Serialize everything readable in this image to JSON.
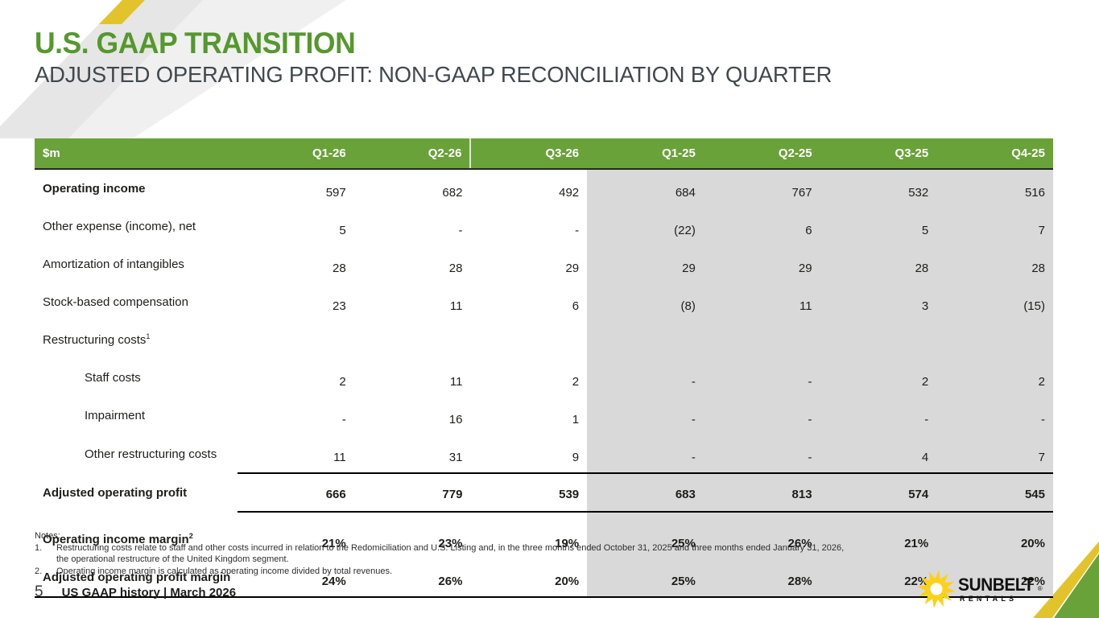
{
  "slide": {
    "title": "U.S. GAAP TRANSITION",
    "subtitle": "ADJUSTED OPERATING PROFIT: NON-GAAP RECONCILIATION BY QUARTER",
    "page_number": "5",
    "footer_label": "US GAAP history | March 2026"
  },
  "table": {
    "unit_label": "$m",
    "columns": [
      "Q1-26",
      "Q2-26",
      "Q3-26",
      "Q1-25",
      "Q2-25",
      "Q3-25",
      "Q4-25"
    ],
    "shaded_from_column": "Q1-25",
    "separator_before_column": "Q3-26",
    "rows": [
      {
        "label": "Operating income",
        "bold_label": true,
        "values": [
          "597",
          "682",
          "492",
          "684",
          "767",
          "532",
          "516"
        ]
      },
      {
        "label": "Other expense (income), net",
        "values": [
          "5",
          "-",
          "-",
          "(22)",
          "6",
          "5",
          "7"
        ]
      },
      {
        "label": "Amortization of intangibles",
        "values": [
          "28",
          "28",
          "29",
          "29",
          "29",
          "28",
          "28"
        ]
      },
      {
        "label": "Stock-based compensation",
        "values": [
          "23",
          "11",
          "6",
          "(8)",
          "11",
          "3",
          "(15)"
        ]
      },
      {
        "label": "Restructuring costs",
        "label_sup": "1",
        "values": [
          "",
          "",
          "",
          "",
          "",
          "",
          ""
        ]
      },
      {
        "label": "Staff costs",
        "indent": true,
        "values": [
          "2",
          "11",
          "2",
          "-",
          "-",
          "2",
          "2"
        ]
      },
      {
        "label": "Impairment",
        "indent": true,
        "values": [
          "-",
          "16",
          "1",
          "-",
          "-",
          "-",
          "-"
        ]
      },
      {
        "label": "Other restructuring costs",
        "indent": true,
        "values": [
          "11",
          "31",
          "9",
          "-",
          "-",
          "4",
          "7"
        ]
      },
      {
        "label": "Adjusted operating profit",
        "bold_label": true,
        "bold_values": true,
        "total": true,
        "values": [
          "666",
          "779",
          "539",
          "683",
          "813",
          "574",
          "545"
        ]
      },
      {
        "label": "Operating income margin",
        "label_sup": "2",
        "bold_label": true,
        "bold_values": true,
        "spacer_before": true,
        "values": [
          "21%",
          "23%",
          "19%",
          "25%",
          "26%",
          "21%",
          "20%"
        ]
      },
      {
        "label": "Adjusted operating profit margin",
        "bold_label": true,
        "bold_values": true,
        "last": true,
        "values": [
          "24%",
          "26%",
          "20%",
          "25%",
          "28%",
          "22%",
          "22%"
        ]
      }
    ]
  },
  "notes": {
    "heading": "Notes:",
    "items": [
      {
        "num": "1.",
        "text": "Restructuring costs relate to staff and other costs incurred in relation to the Redomiciliation and U.S. Listing and, in the three months ended October 31, 2025 and three months ended January 31, 2026, the operational restructure of the United Kingdom segment."
      },
      {
        "num": "2.",
        "text": "Operating income margin is calculated as operating income divided by total revenues."
      }
    ]
  },
  "logo": {
    "brand": "SUNBELT",
    "registered": "®",
    "sub_brand": "RENTALS"
  },
  "colors": {
    "title_green": "#55982D",
    "subtitle_gray": "#41484E",
    "header_green": "#6AA23A",
    "shaded_gray": "#D9D9D9",
    "deco_gray_dark": "#E6E6E6",
    "deco_gray_light": "#F0F0F0",
    "deco_yellow": "#E3C32B",
    "deco_green": "#6AA23A",
    "logo_yellow": "#FCD116"
  }
}
